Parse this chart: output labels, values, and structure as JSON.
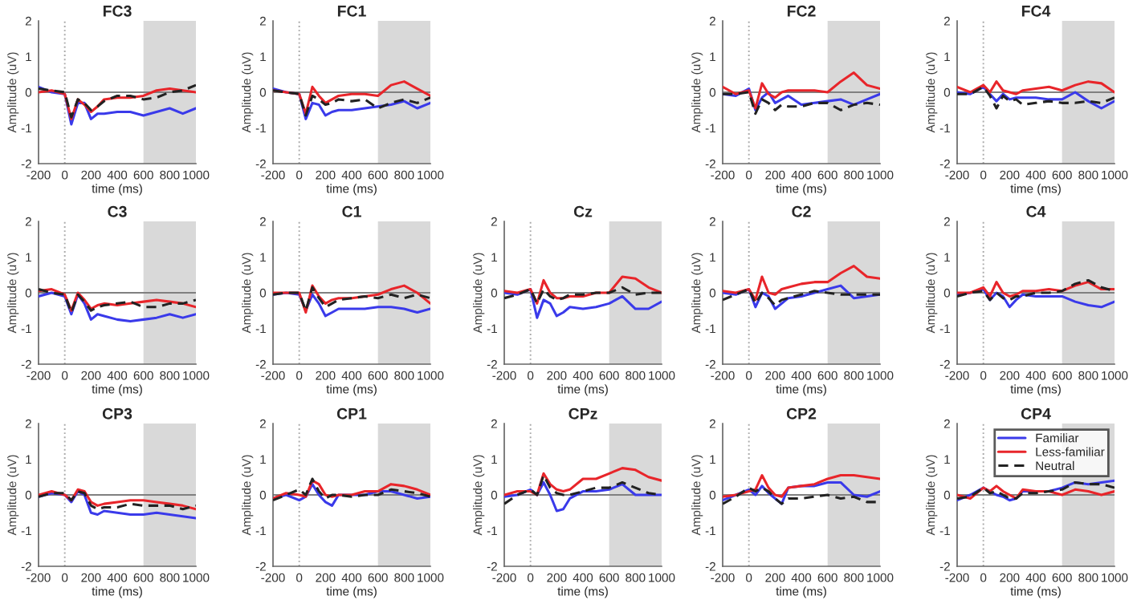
{
  "chart_data": [
    {
      "type": "line",
      "title": "FC3",
      "xlabel": "time (ms)",
      "ylabel": "Amplitude (uV)",
      "x": [
        -200,
        -100,
        0,
        50,
        100,
        150,
        200,
        250,
        300,
        400,
        500,
        600,
        700,
        800,
        900,
        1000
      ],
      "xlim": [
        -200,
        1000
      ],
      "xticks": [
        -200,
        0,
        200,
        400,
        600,
        800,
        1000
      ],
      "ylim": [
        -2,
        2
      ],
      "yticks": [
        -2,
        -1,
        0,
        1,
        2
      ],
      "bands": [
        {
          "axis": "x",
          "from": 600,
          "to": 1000,
          "color": "#d9d9d9"
        }
      ],
      "ref_lines": [
        {
          "axis": "x",
          "value": 0,
          "color": "#aaaaaa",
          "line_style": "dotted"
        },
        {
          "axis": "y",
          "value": 0,
          "color": "#808080",
          "line_style": "solid"
        }
      ],
      "series": [
        {
          "color": "#3a3aea",
          "line_style": "solid",
          "values": [
            0.15,
            0,
            -0.05,
            -0.9,
            -0.3,
            -0.3,
            -0.75,
            -0.6,
            -0.6,
            -0.55,
            -0.55,
            -0.65,
            -0.55,
            -0.45,
            -0.6,
            -0.45
          ]
        },
        {
          "color": "#e8252a",
          "line_style": "solid",
          "values": [
            0,
            0.05,
            -0.05,
            -0.75,
            -0.2,
            -0.35,
            -0.55,
            -0.4,
            -0.2,
            -0.15,
            -0.15,
            -0.1,
            0.05,
            0.1,
            0.05,
            0
          ]
        },
        {
          "color": "#222222",
          "line_style": "dashed",
          "values": [
            0.1,
            0.05,
            0,
            -0.7,
            -0.2,
            -0.3,
            -0.5,
            -0.4,
            -0.25,
            -0.1,
            -0.1,
            -0.2,
            -0.15,
            0,
            0.05,
            0.2
          ]
        }
      ]
    },
    {
      "type": "line",
      "title": "FC1",
      "xlabel": "time (ms)",
      "ylabel": "Amplitude (uV)",
      "x": [
        -200,
        -100,
        0,
        50,
        100,
        150,
        200,
        250,
        300,
        400,
        500,
        600,
        700,
        800,
        900,
        1000
      ],
      "xlim": [
        -200,
        1000
      ],
      "xticks": [
        -200,
        0,
        200,
        400,
        600,
        800,
        1000
      ],
      "ylim": [
        -2,
        2
      ],
      "yticks": [
        -2,
        -1,
        0,
        1,
        2
      ],
      "bands": [
        {
          "axis": "x",
          "from": 600,
          "to": 1000,
          "color": "#d9d9d9"
        }
      ],
      "ref_lines": [
        {
          "axis": "x",
          "value": 0,
          "color": "#aaaaaa",
          "line_style": "dotted"
        },
        {
          "axis": "y",
          "value": 0,
          "color": "#808080",
          "line_style": "solid"
        }
      ],
      "series": [
        {
          "color": "#3a3aea",
          "line_style": "solid",
          "values": [
            0.1,
            0,
            -0.05,
            -0.75,
            -0.3,
            -0.35,
            -0.65,
            -0.55,
            -0.5,
            -0.5,
            -0.45,
            -0.4,
            -0.35,
            -0.25,
            -0.45,
            -0.3
          ]
        },
        {
          "color": "#e8252a",
          "line_style": "solid",
          "values": [
            0.05,
            0,
            -0.05,
            -0.6,
            0.15,
            -0.1,
            -0.3,
            -0.2,
            -0.1,
            -0.05,
            -0.05,
            -0.1,
            0.2,
            0.3,
            0.1,
            -0.1
          ]
        },
        {
          "color": "#222222",
          "line_style": "dashed",
          "values": [
            0.05,
            0,
            -0.05,
            -0.65,
            -0.1,
            -0.2,
            -0.35,
            -0.3,
            -0.2,
            -0.25,
            -0.2,
            -0.45,
            -0.3,
            -0.2,
            -0.3,
            -0.15
          ]
        }
      ]
    },
    {
      "type": "line",
      "title": "FC2",
      "xlabel": "time (ms)",
      "ylabel": "Amplitude (uV)",
      "x": [
        -200,
        -100,
        0,
        50,
        100,
        150,
        200,
        250,
        300,
        400,
        500,
        600,
        700,
        800,
        900,
        1000
      ],
      "xlim": [
        -200,
        1000
      ],
      "xticks": [
        -200,
        0,
        200,
        400,
        600,
        800,
        1000
      ],
      "ylim": [
        -2,
        2
      ],
      "yticks": [
        -2,
        -1,
        0,
        1,
        2
      ],
      "bands": [
        {
          "axis": "x",
          "from": 600,
          "to": 1000,
          "color": "#d9d9d9"
        }
      ],
      "ref_lines": [
        {
          "axis": "x",
          "value": 0,
          "color": "#aaaaaa",
          "line_style": "dotted"
        },
        {
          "axis": "y",
          "value": 0,
          "color": "#808080",
          "line_style": "solid"
        }
      ],
      "series": [
        {
          "color": "#3a3aea",
          "line_style": "solid",
          "values": [
            -0.05,
            -0.1,
            0.1,
            -0.5,
            -0.15,
            0,
            -0.3,
            -0.2,
            -0.1,
            -0.35,
            -0.3,
            -0.25,
            -0.2,
            -0.35,
            -0.2,
            -0.05
          ]
        },
        {
          "color": "#e8252a",
          "line_style": "solid",
          "values": [
            0.15,
            -0.05,
            0.05,
            -0.45,
            0.25,
            -0.05,
            -0.15,
            0,
            0.05,
            0.05,
            0.05,
            0,
            0.3,
            0.55,
            0.2,
            0.1
          ]
        },
        {
          "color": "#222222",
          "line_style": "dashed",
          "values": [
            -0.05,
            -0.05,
            0,
            -0.6,
            -0.2,
            -0.3,
            -0.5,
            -0.35,
            -0.4,
            -0.4,
            -0.3,
            -0.3,
            -0.5,
            -0.35,
            -0.3,
            -0.35
          ]
        }
      ]
    },
    {
      "type": "line",
      "title": "FC4",
      "xlabel": "time (ms)",
      "ylabel": "Amplitude (uV)",
      "x": [
        -200,
        -100,
        0,
        50,
        100,
        150,
        200,
        250,
        300,
        400,
        500,
        600,
        700,
        800,
        900,
        1000
      ],
      "xlim": [
        -200,
        1000
      ],
      "xticks": [
        -200,
        0,
        200,
        400,
        600,
        800,
        1000
      ],
      "ylim": [
        -2,
        2
      ],
      "yticks": [
        -2,
        -1,
        0,
        1,
        2
      ],
      "bands": [
        {
          "axis": "x",
          "from": 600,
          "to": 1000,
          "color": "#d9d9d9"
        }
      ],
      "ref_lines": [
        {
          "axis": "x",
          "value": 0,
          "color": "#aaaaaa",
          "line_style": "dotted"
        },
        {
          "axis": "y",
          "value": 0,
          "color": "#808080",
          "line_style": "solid"
        }
      ],
      "series": [
        {
          "color": "#3a3aea",
          "line_style": "solid",
          "values": [
            0,
            -0.05,
            0.15,
            -0.05,
            -0.25,
            -0.05,
            -0.2,
            -0.15,
            -0.15,
            -0.15,
            -0.2,
            -0.2,
            0,
            -0.25,
            -0.45,
            -0.25
          ]
        },
        {
          "color": "#e8252a",
          "line_style": "solid",
          "values": [
            0.15,
            0,
            0.2,
            0,
            0.3,
            0.05,
            0,
            -0.05,
            0.05,
            0.1,
            0.15,
            0.05,
            0.2,
            0.3,
            0.25,
            0
          ]
        },
        {
          "color": "#222222",
          "line_style": "dashed",
          "values": [
            -0.05,
            -0.05,
            0.15,
            -0.1,
            -0.45,
            -0.1,
            -0.25,
            -0.2,
            -0.35,
            -0.3,
            -0.25,
            -0.3,
            -0.3,
            -0.25,
            -0.3,
            -0.15
          ]
        }
      ]
    },
    {
      "type": "line",
      "title": "C3",
      "xlabel": "time (ms)",
      "ylabel": "Amplitude (uV)",
      "x": [
        -200,
        -100,
        0,
        50,
        100,
        150,
        200,
        250,
        300,
        400,
        500,
        600,
        700,
        800,
        900,
        1000
      ],
      "xlim": [
        -200,
        1000
      ],
      "xticks": [
        -200,
        0,
        200,
        400,
        600,
        800,
        1000
      ],
      "ylim": [
        -2,
        2
      ],
      "yticks": [
        -2,
        -1,
        0,
        1,
        2
      ],
      "bands": [
        {
          "axis": "x",
          "from": 600,
          "to": 1000,
          "color": "#d9d9d9"
        }
      ],
      "ref_lines": [
        {
          "axis": "x",
          "value": 0,
          "color": "#aaaaaa",
          "line_style": "dotted"
        },
        {
          "axis": "y",
          "value": 0,
          "color": "#808080",
          "line_style": "solid"
        }
      ],
      "series": [
        {
          "color": "#3a3aea",
          "line_style": "solid",
          "values": [
            -0.1,
            0,
            -0.1,
            -0.6,
            -0.05,
            -0.3,
            -0.75,
            -0.6,
            -0.65,
            -0.75,
            -0.8,
            -0.75,
            -0.7,
            -0.6,
            -0.7,
            -0.6
          ]
        },
        {
          "color": "#e8252a",
          "line_style": "solid",
          "values": [
            0.05,
            0.1,
            -0.05,
            -0.5,
            0,
            -0.2,
            -0.45,
            -0.35,
            -0.3,
            -0.35,
            -0.3,
            -0.25,
            -0.2,
            -0.25,
            -0.3,
            -0.4
          ]
        },
        {
          "color": "#222222",
          "line_style": "dashed",
          "values": [
            0.1,
            0,
            -0.05,
            -0.55,
            -0.05,
            -0.25,
            -0.5,
            -0.4,
            -0.35,
            -0.3,
            -0.25,
            -0.4,
            -0.4,
            -0.3,
            -0.3,
            -0.2
          ]
        }
      ]
    },
    {
      "type": "line",
      "title": "C1",
      "xlabel": "time (ms)",
      "ylabel": "Amplitude (uV)",
      "x": [
        -200,
        -100,
        0,
        50,
        100,
        150,
        200,
        250,
        300,
        400,
        500,
        600,
        700,
        800,
        900,
        1000
      ],
      "xlim": [
        -200,
        1000
      ],
      "xticks": [
        -200,
        0,
        200,
        400,
        600,
        800,
        1000
      ],
      "ylim": [
        -2,
        2
      ],
      "yticks": [
        -2,
        -1,
        0,
        1,
        2
      ],
      "bands": [
        {
          "axis": "x",
          "from": 600,
          "to": 1000,
          "color": "#d9d9d9"
        }
      ],
      "ref_lines": [
        {
          "axis": "x",
          "value": 0,
          "color": "#aaaaaa",
          "line_style": "dotted"
        },
        {
          "axis": "y",
          "value": 0,
          "color": "#808080",
          "line_style": "solid"
        }
      ],
      "series": [
        {
          "color": "#3a3aea",
          "line_style": "solid",
          "values": [
            -0.05,
            0,
            -0.05,
            -0.5,
            -0.05,
            -0.3,
            -0.65,
            -0.55,
            -0.45,
            -0.45,
            -0.45,
            -0.4,
            -0.4,
            -0.45,
            -0.55,
            -0.45
          ]
        },
        {
          "color": "#e8252a",
          "line_style": "solid",
          "values": [
            0,
            0,
            0,
            -0.55,
            0.2,
            -0.1,
            -0.3,
            -0.2,
            -0.15,
            -0.15,
            -0.1,
            -0.05,
            0.1,
            0.2,
            0,
            -0.3
          ]
        },
        {
          "color": "#222222",
          "line_style": "dashed",
          "values": [
            -0.05,
            0,
            0,
            -0.5,
            0.15,
            -0.15,
            -0.4,
            -0.3,
            -0.2,
            -0.15,
            -0.1,
            -0.15,
            -0.05,
            -0.15,
            -0.05,
            -0.15
          ]
        }
      ]
    },
    {
      "type": "line",
      "title": "Cz",
      "xlabel": "time (ms)",
      "ylabel": "Amplitude (uV)",
      "x": [
        -200,
        -100,
        0,
        50,
        100,
        150,
        200,
        250,
        300,
        400,
        500,
        600,
        700,
        800,
        900,
        1000
      ],
      "xlim": [
        -200,
        1000
      ],
      "xticks": [
        -200,
        0,
        200,
        400,
        600,
        800,
        1000
      ],
      "ylim": [
        -2,
        2
      ],
      "yticks": [
        -2,
        -1,
        0,
        1,
        2
      ],
      "bands": [
        {
          "axis": "x",
          "from": 600,
          "to": 1000,
          "color": "#d9d9d9"
        }
      ],
      "ref_lines": [
        {
          "axis": "x",
          "value": 0,
          "color": "#aaaaaa",
          "line_style": "dotted"
        },
        {
          "axis": "y",
          "value": 0,
          "color": "#808080",
          "line_style": "solid"
        }
      ],
      "series": [
        {
          "color": "#3a3aea",
          "line_style": "solid",
          "values": [
            0,
            -0.05,
            0.1,
            -0.7,
            -0.2,
            -0.3,
            -0.65,
            -0.55,
            -0.4,
            -0.45,
            -0.4,
            -0.3,
            -0.1,
            -0.45,
            -0.45,
            -0.25
          ]
        },
        {
          "color": "#e8252a",
          "line_style": "solid",
          "values": [
            0.05,
            0,
            0.1,
            -0.3,
            0.35,
            0,
            -0.15,
            -0.15,
            -0.1,
            -0.1,
            0,
            0,
            0.45,
            0.4,
            0.15,
            0
          ]
        },
        {
          "color": "#222222",
          "line_style": "dashed",
          "values": [
            -0.15,
            -0.05,
            0.1,
            -0.3,
            0.1,
            -0.1,
            -0.2,
            -0.15,
            -0.05,
            -0.05,
            0,
            0,
            0.15,
            -0.05,
            0,
            0
          ]
        }
      ]
    },
    {
      "type": "line",
      "title": "C2",
      "xlabel": "time (ms)",
      "ylabel": "Amplitude (uV)",
      "x": [
        -200,
        -100,
        0,
        50,
        100,
        150,
        200,
        250,
        300,
        400,
        500,
        600,
        700,
        800,
        900,
        1000
      ],
      "xlim": [
        -200,
        1000
      ],
      "xticks": [
        -200,
        0,
        200,
        400,
        600,
        800,
        1000
      ],
      "ylim": [
        -2,
        2
      ],
      "yticks": [
        -2,
        -1,
        0,
        1,
        2
      ],
      "bands": [
        {
          "axis": "x",
          "from": 600,
          "to": 1000,
          "color": "#d9d9d9"
        }
      ],
      "ref_lines": [
        {
          "axis": "x",
          "value": 0,
          "color": "#aaaaaa",
          "line_style": "dotted"
        },
        {
          "axis": "y",
          "value": 0,
          "color": "#808080",
          "line_style": "solid"
        }
      ],
      "series": [
        {
          "color": "#3a3aea",
          "line_style": "solid",
          "values": [
            0,
            -0.05,
            0.1,
            -0.4,
            0,
            -0.1,
            -0.45,
            -0.3,
            -0.15,
            -0.1,
            0,
            0.1,
            0.2,
            -0.15,
            -0.1,
            -0.05
          ]
        },
        {
          "color": "#e8252a",
          "line_style": "solid",
          "values": [
            0.05,
            0,
            0.1,
            -0.2,
            0.45,
            0,
            -0.05,
            0.1,
            0.15,
            0.25,
            0.3,
            0.3,
            0.55,
            0.75,
            0.45,
            0.4
          ]
        },
        {
          "color": "#222222",
          "line_style": "dashed",
          "values": [
            -0.2,
            -0.05,
            0.1,
            -0.3,
            0,
            -0.15,
            -0.35,
            -0.2,
            -0.15,
            -0.05,
            0.05,
            0,
            -0.05,
            -0.05,
            -0.05,
            -0.05
          ]
        }
      ]
    },
    {
      "type": "line",
      "title": "C4",
      "xlabel": "time (ms)",
      "ylabel": "Amplitude (uV)",
      "x": [
        -200,
        -100,
        0,
        50,
        100,
        150,
        200,
        250,
        300,
        400,
        500,
        600,
        700,
        800,
        900,
        1000
      ],
      "xlim": [
        -200,
        1000
      ],
      "xticks": [
        -200,
        0,
        200,
        400,
        600,
        800,
        1000
      ],
      "ylim": [
        -2,
        2
      ],
      "yticks": [
        -2,
        -1,
        0,
        1,
        2
      ],
      "bands": [
        {
          "axis": "x",
          "from": 600,
          "to": 1000,
          "color": "#d9d9d9"
        }
      ],
      "ref_lines": [
        {
          "axis": "x",
          "value": 0,
          "color": "#aaaaaa",
          "line_style": "dotted"
        },
        {
          "axis": "y",
          "value": 0,
          "color": "#808080",
          "line_style": "solid"
        }
      ],
      "series": [
        {
          "color": "#3a3aea",
          "line_style": "solid",
          "values": [
            -0.05,
            0,
            0.1,
            -0.2,
            0,
            -0.1,
            -0.4,
            -0.2,
            -0.05,
            -0.1,
            -0.1,
            -0.1,
            -0.25,
            -0.35,
            -0.4,
            -0.25
          ]
        },
        {
          "color": "#e8252a",
          "line_style": "solid",
          "values": [
            0,
            0,
            0.15,
            -0.1,
            0.3,
            0,
            -0.1,
            -0.05,
            0.05,
            0.05,
            0.1,
            0.05,
            0.2,
            0.3,
            0.1,
            0.1
          ]
        },
        {
          "color": "#222222",
          "line_style": "dashed",
          "values": [
            -0.1,
            0,
            0.05,
            -0.2,
            0,
            -0.15,
            -0.2,
            -0.1,
            -0.1,
            0,
            0,
            0.05,
            0.25,
            0.35,
            0.15,
            0.05
          ]
        }
      ]
    },
    {
      "type": "line",
      "title": "CP3",
      "xlabel": "time (ms)",
      "ylabel": "Amplitude (uV)",
      "x": [
        -200,
        -100,
        0,
        50,
        100,
        150,
        200,
        250,
        300,
        400,
        500,
        600,
        700,
        800,
        900,
        1000
      ],
      "xlim": [
        -200,
        1000
      ],
      "xticks": [
        -200,
        0,
        200,
        400,
        600,
        800,
        1000
      ],
      "ylim": [
        -2,
        2
      ],
      "yticks": [
        -2,
        -1,
        0,
        1,
        2
      ],
      "bands": [
        {
          "axis": "x",
          "from": 600,
          "to": 1000,
          "color": "#d9d9d9"
        }
      ],
      "ref_lines": [
        {
          "axis": "x",
          "value": 0,
          "color": "#aaaaaa",
          "line_style": "dotted"
        },
        {
          "axis": "y",
          "value": 0,
          "color": "#808080",
          "line_style": "solid"
        }
      ],
      "series": [
        {
          "color": "#3a3aea",
          "line_style": "solid",
          "values": [
            -0.05,
            0.05,
            0,
            -0.2,
            0.1,
            0,
            -0.5,
            -0.55,
            -0.45,
            -0.5,
            -0.55,
            -0.55,
            -0.5,
            -0.55,
            -0.6,
            -0.65
          ]
        },
        {
          "color": "#e8252a",
          "line_style": "solid",
          "values": [
            0,
            0.1,
            0,
            -0.15,
            0.15,
            0.1,
            -0.2,
            -0.3,
            -0.25,
            -0.2,
            -0.15,
            -0.15,
            -0.2,
            -0.25,
            -0.3,
            -0.4
          ]
        },
        {
          "color": "#222222",
          "line_style": "dashed",
          "values": [
            -0.05,
            0.05,
            0.05,
            -0.15,
            0.1,
            0.05,
            -0.3,
            -0.4,
            -0.35,
            -0.35,
            -0.25,
            -0.3,
            -0.3,
            -0.3,
            -0.4,
            -0.3
          ]
        }
      ]
    },
    {
      "type": "line",
      "title": "CP1",
      "xlabel": "time (ms)",
      "ylabel": "Amplitude (uV)",
      "x": [
        -200,
        -100,
        0,
        50,
        100,
        150,
        200,
        250,
        300,
        400,
        500,
        600,
        700,
        800,
        900,
        1000
      ],
      "xlim": [
        -200,
        1000
      ],
      "xticks": [
        -200,
        0,
        200,
        400,
        600,
        800,
        1000
      ],
      "ylim": [
        -2,
        2
      ],
      "yticks": [
        -2,
        -1,
        0,
        1,
        2
      ],
      "bands": [
        {
          "axis": "x",
          "from": 600,
          "to": 1000,
          "color": "#d9d9d9"
        }
      ],
      "ref_lines": [
        {
          "axis": "x",
          "value": 0,
          "color": "#aaaaaa",
          "line_style": "dotted"
        },
        {
          "axis": "y",
          "value": 0,
          "color": "#808080",
          "line_style": "solid"
        }
      ],
      "series": [
        {
          "color": "#3a3aea",
          "line_style": "solid",
          "values": [
            -0.1,
            0,
            -0.15,
            -0.05,
            0.3,
            0,
            -0.2,
            -0.3,
            0,
            0,
            0,
            0.1,
            0.1,
            0,
            -0.1,
            -0.05
          ]
        },
        {
          "color": "#e8252a",
          "line_style": "solid",
          "values": [
            -0.1,
            0.05,
            0,
            -0.05,
            0.4,
            0.3,
            0,
            -0.05,
            0,
            0,
            0.1,
            0.1,
            0.3,
            0.25,
            0.15,
            0
          ]
        },
        {
          "color": "#222222",
          "line_style": "dashed",
          "values": [
            -0.15,
            0,
            0.15,
            0,
            0.45,
            0.1,
            -0.1,
            0,
            0,
            -0.05,
            0,
            0,
            0.15,
            0.1,
            0.05,
            -0.05
          ]
        }
      ]
    },
    {
      "type": "line",
      "title": "CPz",
      "xlabel": "time (ms)",
      "ylabel": "Amplitude (uV)",
      "x": [
        -200,
        -100,
        0,
        50,
        100,
        150,
        200,
        250,
        300,
        400,
        500,
        600,
        700,
        800,
        900,
        1000
      ],
      "xlim": [
        -200,
        1000
      ],
      "xticks": [
        -200,
        0,
        200,
        400,
        600,
        800,
        1000
      ],
      "ylim": [
        -2,
        2
      ],
      "yticks": [
        -2,
        -1,
        0,
        1,
        2
      ],
      "bands": [
        {
          "axis": "x",
          "from": 600,
          "to": 1000,
          "color": "#d9d9d9"
        }
      ],
      "ref_lines": [
        {
          "axis": "x",
          "value": 0,
          "color": "#aaaaaa",
          "line_style": "dotted"
        },
        {
          "axis": "y",
          "value": 0,
          "color": "#808080",
          "line_style": "solid"
        }
      ],
      "series": [
        {
          "color": "#3a3aea",
          "line_style": "solid",
          "values": [
            -0.05,
            0,
            0.15,
            0,
            0.35,
            0,
            -0.45,
            -0.4,
            -0.1,
            0.1,
            0.1,
            0.15,
            0.3,
            0,
            0,
            0
          ]
        },
        {
          "color": "#e8252a",
          "line_style": "solid",
          "values": [
            0,
            0.1,
            0.1,
            0,
            0.6,
            0.3,
            0.15,
            0.1,
            0.15,
            0.45,
            0.45,
            0.6,
            0.75,
            0.7,
            0.5,
            0.4
          ]
        },
        {
          "color": "#222222",
          "line_style": "dashed",
          "values": [
            -0.25,
            0,
            0.15,
            0,
            0.55,
            0.2,
            0.05,
            0,
            0,
            0.1,
            0.2,
            0.2,
            0.35,
            0.2,
            0.05,
            0
          ]
        }
      ]
    },
    {
      "type": "line",
      "title": "CP2",
      "xlabel": "time (ms)",
      "ylabel": "Amplitude (uV)",
      "x": [
        -200,
        -100,
        0,
        50,
        100,
        150,
        200,
        250,
        300,
        400,
        500,
        600,
        700,
        800,
        900,
        1000
      ],
      "xlim": [
        -200,
        1000
      ],
      "xticks": [
        -200,
        0,
        200,
        400,
        600,
        800,
        1000
      ],
      "ylim": [
        -2,
        2
      ],
      "yticks": [
        -2,
        -1,
        0,
        1,
        2
      ],
      "bands": [
        {
          "axis": "x",
          "from": 600,
          "to": 1000,
          "color": "#d9d9d9"
        }
      ],
      "ref_lines": [
        {
          "axis": "x",
          "value": 0,
          "color": "#aaaaaa",
          "line_style": "dotted"
        },
        {
          "axis": "y",
          "value": 0,
          "color": "#808080",
          "line_style": "solid"
        }
      ],
      "series": [
        {
          "color": "#3a3aea",
          "line_style": "solid",
          "values": [
            -0.15,
            0,
            0.15,
            0,
            0.25,
            0.05,
            -0.1,
            -0.25,
            0.2,
            0.25,
            0.25,
            0.35,
            0.35,
            0,
            -0.05,
            0.1
          ]
        },
        {
          "color": "#e8252a",
          "line_style": "solid",
          "values": [
            -0.05,
            0,
            0.1,
            0.15,
            0.55,
            0.2,
            0,
            -0.05,
            0.2,
            0.25,
            0.3,
            0.45,
            0.55,
            0.55,
            0.5,
            0.45
          ]
        },
        {
          "color": "#222222",
          "line_style": "dashed",
          "values": [
            -0.25,
            -0.05,
            0.2,
            0.1,
            0.2,
            0.1,
            -0.1,
            -0.25,
            -0.1,
            -0.1,
            -0.05,
            0,
            -0.1,
            -0.05,
            -0.2,
            -0.2
          ]
        }
      ]
    },
    {
      "type": "line",
      "title": "CP4",
      "xlabel": "time (ms)",
      "ylabel": "Amplitude (uV)",
      "legend": "top right",
      "x": [
        -200,
        -100,
        0,
        50,
        100,
        150,
        200,
        250,
        300,
        400,
        500,
        600,
        700,
        800,
        900,
        1000
      ],
      "xlim": [
        -200,
        1000
      ],
      "xticks": [
        -200,
        0,
        200,
        400,
        600,
        800,
        1000
      ],
      "ylim": [
        -2,
        2
      ],
      "yticks": [
        -2,
        -1,
        0,
        1,
        2
      ],
      "bands": [
        {
          "axis": "x",
          "from": 600,
          "to": 1000,
          "color": "#d9d9d9"
        }
      ],
      "ref_lines": [
        {
          "axis": "x",
          "value": 0,
          "color": "#aaaaaa",
          "line_style": "dotted"
        },
        {
          "axis": "y",
          "value": 0,
          "color": "#808080",
          "line_style": "solid"
        }
      ],
      "series": [
        {
          "name": "Familiar",
          "color": "#3a3aea",
          "line_style": "solid",
          "values": [
            -0.15,
            0,
            0.2,
            0.1,
            0,
            -0.05,
            -0.15,
            -0.1,
            0.1,
            0.1,
            0.1,
            0.2,
            0.35,
            0.3,
            0.35,
            0.4
          ]
        },
        {
          "name": "Less-familiar",
          "color": "#e8252a",
          "line_style": "solid",
          "values": [
            0,
            -0.1,
            0.2,
            0.1,
            0.25,
            0.1,
            0,
            -0.1,
            0.15,
            0.1,
            0.1,
            0,
            0.15,
            0.1,
            0,
            0.1
          ]
        },
        {
          "name": "Neutral",
          "color": "#222222",
          "line_style": "dashed",
          "values": [
            -0.1,
            -0.05,
            0.2,
            0.05,
            0.1,
            0,
            -0.1,
            -0.1,
            0.05,
            0.05,
            0.1,
            0.15,
            0.35,
            0.3,
            0.3,
            0.2
          ]
        }
      ]
    }
  ]
}
